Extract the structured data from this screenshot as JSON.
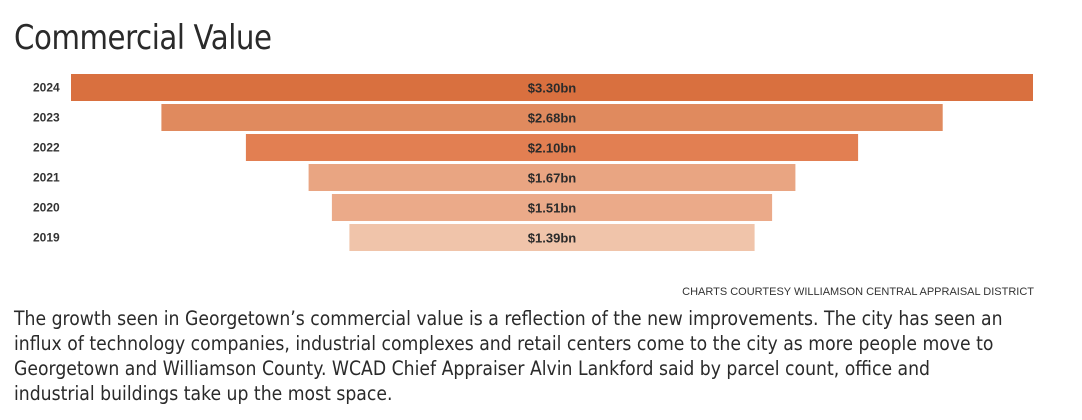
{
  "chart_data": {
    "type": "bar",
    "title": "Commercial Value",
    "orientation": "horizontal-centered",
    "categories": [
      "2024",
      "2023",
      "2022",
      "2021",
      "2020",
      "2019"
    ],
    "values": [
      3.3,
      2.68,
      2.1,
      1.67,
      1.51,
      1.39
    ],
    "data_labels": [
      "$3.30bn",
      "$2.68bn",
      "$2.10bn",
      "$1.67bn",
      "$1.51bn",
      "$1.39bn"
    ],
    "unit": "billion USD",
    "colors": [
      "#d9703f",
      "#e08a5e",
      "#e27f52",
      "#e9a582",
      "#ebaa89",
      "#f0c4aa"
    ],
    "xlabel": "",
    "ylabel": "",
    "grid": false
  },
  "credit": "CHARTS COURTESY WILLIAMSON CENTRAL APPRAISAL DISTRICT",
  "article": {
    "paragraph": "The growth seen in Georgetown’s commercial value is a reflection of the new improvements. The city has seen an influx of technology companies, industrial complexes and retail centers come to the city as more people move to Georgetown and Williamson County.  WCAD Chief Appraiser Alvin Lankford said by parcel count, office and industrial buildings take up the most space."
  }
}
